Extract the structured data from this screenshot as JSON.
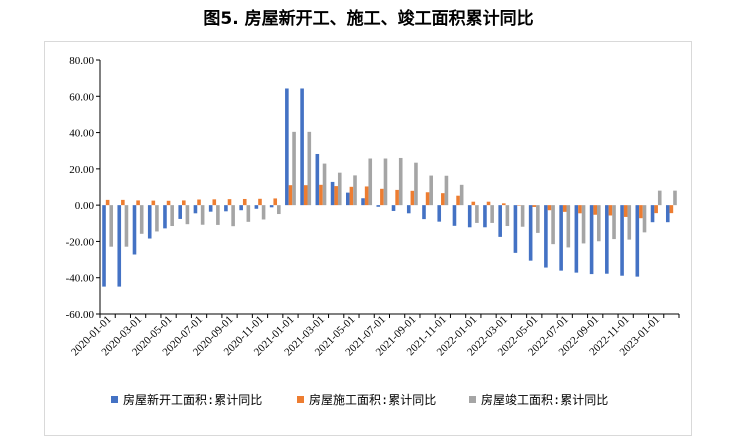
{
  "chart_data": {
    "type": "bar",
    "title": "图5. 房屋新开工、施工、竣工面积累计同比",
    "xlabel": "",
    "ylabel": "",
    "ylim": [
      -60,
      80
    ],
    "yticks": [
      -60,
      -40,
      -20,
      0,
      20,
      40,
      60,
      80
    ],
    "ytick_labels": [
      "-60.00",
      "-40.00",
      "-20.00",
      "0.00",
      "20.00",
      "40.00",
      "60.00",
      "80.00"
    ],
    "grid": false,
    "legend_position": "bottom",
    "categories": [
      "2020-01-01",
      "2020-02-01",
      "2020-03-01",
      "2020-04-01",
      "2020-05-01",
      "2020-06-01",
      "2020-07-01",
      "2020-08-01",
      "2020-09-01",
      "2020-10-01",
      "2020-11-01",
      "2020-12-01",
      "2021-01-01",
      "2021-02-01",
      "2021-03-01",
      "2021-04-01",
      "2021-05-01",
      "2021-06-01",
      "2021-07-01",
      "2021-08-01",
      "2021-09-01",
      "2021-10-01",
      "2021-11-01",
      "2021-12-01",
      "2022-01-01",
      "2022-02-01",
      "2022-03-01",
      "2022-04-01",
      "2022-05-01",
      "2022-06-01",
      "2022-07-01",
      "2022-08-01",
      "2022-09-01",
      "2022-10-01",
      "2022-11-01",
      "2022-12-01",
      "2023-01-01",
      "2023-02-01"
    ],
    "x_tick_labels": [
      "2020-01-01",
      "2020-03-01",
      "2020-05-01",
      "2020-07-01",
      "2020-09-01",
      "2020-11-01",
      "2021-01-01",
      "2021-03-01",
      "2021-05-01",
      "2021-07-01",
      "2021-09-01",
      "2021-11-01",
      "2022-01-01",
      "2022-03-01",
      "2022-05-01",
      "2022-07-01",
      "2022-09-01",
      "2022-11-01",
      "2023-01-01"
    ],
    "series": [
      {
        "name": "房屋新开工面积:累计同比",
        "color": "#4472c4",
        "values": [
          -44.9,
          -44.9,
          -27.2,
          -18.4,
          -12.8,
          -7.6,
          -4.5,
          -3.6,
          -3.4,
          -2.8,
          -2.0,
          -1.2,
          64.3,
          64.3,
          28.2,
          12.8,
          6.9,
          3.8,
          -0.9,
          -3.2,
          -4.5,
          -7.7,
          -9.1,
          -11.4,
          -12.2,
          -12.2,
          -17.5,
          -26.3,
          -30.6,
          -34.4,
          -36.1,
          -37.2,
          -38.0,
          -37.8,
          -38.9,
          -39.4,
          -9.4,
          -9.4
        ]
      },
      {
        "name": "房屋施工面积:累计同比",
        "color": "#ed7d31",
        "values": [
          2.9,
          2.9,
          2.6,
          2.5,
          2.4,
          2.6,
          3.1,
          3.2,
          3.3,
          3.4,
          3.5,
          3.7,
          11.0,
          11.0,
          11.2,
          10.5,
          10.1,
          10.3,
          9.0,
          8.4,
          7.9,
          7.1,
          6.6,
          5.2,
          1.9,
          1.9,
          1.0,
          0.0,
          -1.0,
          -2.8,
          -3.7,
          -4.5,
          -5.3,
          -5.7,
          -6.5,
          -7.2,
          -4.4,
          -4.4
        ]
      },
      {
        "name": "房屋竣工面积:累计同比",
        "color": "#a5a5a5",
        "values": [
          -22.9,
          -22.9,
          -15.8,
          -14.5,
          -11.5,
          -10.5,
          -10.8,
          -10.9,
          -11.6,
          -9.2,
          -7.9,
          -4.9,
          40.4,
          40.4,
          22.9,
          17.9,
          16.4,
          25.7,
          25.7,
          26.0,
          23.4,
          16.3,
          16.2,
          11.2,
          -9.8,
          -9.8,
          -11.5,
          -11.9,
          -15.3,
          -21.5,
          -23.3,
          -21.1,
          -19.9,
          -18.7,
          -19.0,
          -15.0,
          8.0,
          8.0
        ]
      }
    ]
  }
}
